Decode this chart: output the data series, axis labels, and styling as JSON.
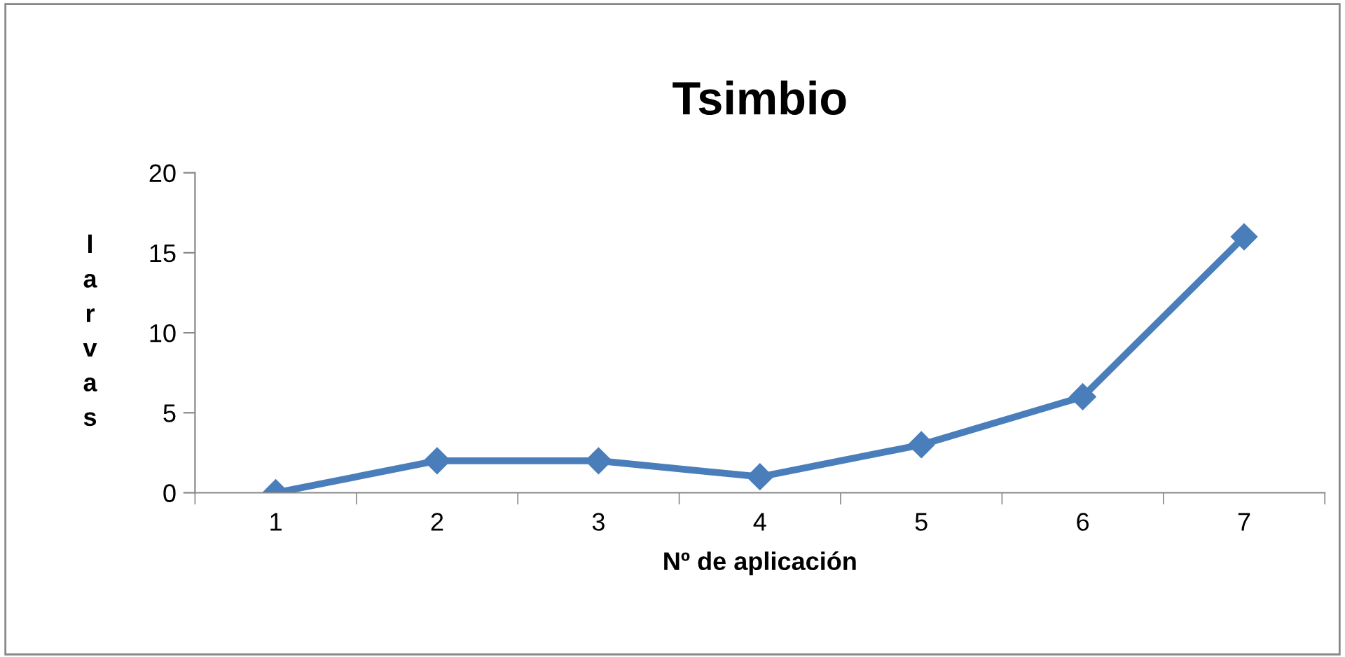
{
  "chart_data": {
    "type": "line",
    "title": "Tsimbio",
    "xlabel": "Nº de aplicación",
    "ylabel": "larvas",
    "categories": [
      "1",
      "2",
      "3",
      "4",
      "5",
      "6",
      "7"
    ],
    "series": [
      {
        "color": "#4a7ebb",
        "values": [
          0,
          2,
          2,
          1,
          3,
          6,
          16
        ]
      }
    ],
    "ylim": [
      0,
      20
    ],
    "yticks": [
      0,
      5,
      10,
      15,
      20
    ],
    "grid": false,
    "marker": "diamond",
    "line_style": "solid"
  }
}
